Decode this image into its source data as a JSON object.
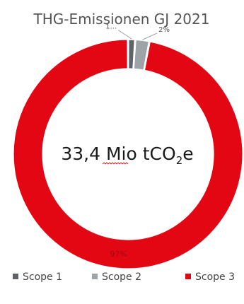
{
  "chart_data": {
    "type": "pie",
    "title": "THG-Emissionen GJ 2021",
    "center": {
      "value_text": "33,4 Mio tCO",
      "subscript": "2",
      "suffix": "e"
    },
    "categories": [
      "Scope 1",
      "Scope 2",
      "Scope 3"
    ],
    "values": [
      1,
      2,
      97
    ],
    "data_labels": [
      "1...",
      "2%",
      "97%"
    ],
    "colors": [
      "#5f6368",
      "#9ea3a8",
      "#e30613"
    ],
    "legend_position": "bottom"
  }
}
